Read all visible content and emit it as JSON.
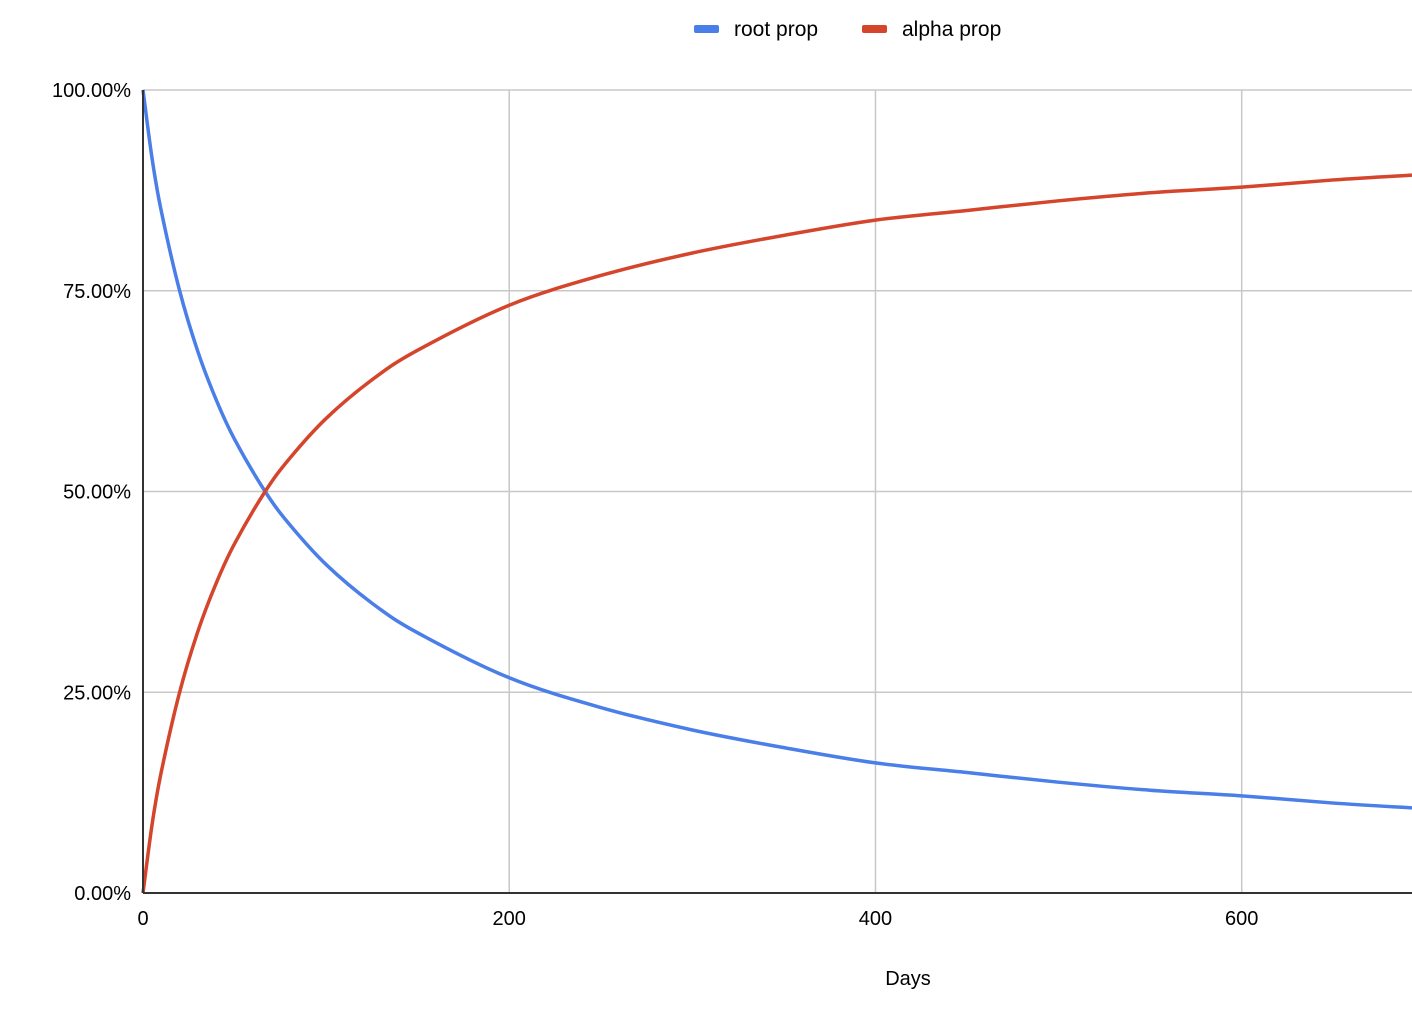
{
  "chart_data": {
    "type": "line",
    "title": "",
    "xlabel": "Days",
    "ylabel": "",
    "xlim": [
      0,
      693
    ],
    "ylim": [
      0,
      1
    ],
    "x_ticks": [
      0,
      200,
      400,
      600
    ],
    "x_tick_labels": [
      "0",
      "200",
      "400",
      "600"
    ],
    "y_ticks": [
      0,
      0.25,
      0.5,
      0.75,
      1
    ],
    "y_tick_labels": [
      "0.00%",
      "25.00%",
      "50.00%",
      "75.00%",
      "100.00%"
    ],
    "grid": true,
    "legend": "top",
    "x": [
      0,
      5,
      10,
      20,
      30,
      40,
      50,
      66.7,
      80,
      100,
      125,
      150,
      200,
      250,
      300,
      350,
      400,
      450,
      500,
      550,
      600,
      650,
      693
    ],
    "series": [
      {
        "name": "root prop",
        "color": "#4a7ee8",
        "values": [
          1.0,
          0.914,
          0.849,
          0.75,
          0.674,
          0.614,
          0.565,
          0.5,
          0.459,
          0.409,
          0.361,
          0.324,
          0.268,
          0.231,
          0.203,
          0.181,
          0.162,
          0.15,
          0.138,
          0.128,
          0.121,
          0.112,
          0.106
        ]
      },
      {
        "name": "alpha prop",
        "color": "#d4452c",
        "values": [
          0.0,
          0.086,
          0.151,
          0.25,
          0.326,
          0.386,
          0.435,
          0.5,
          0.541,
          0.591,
          0.639,
          0.676,
          0.732,
          0.769,
          0.797,
          0.819,
          0.838,
          0.85,
          0.862,
          0.872,
          0.879,
          0.888,
          0.894
        ]
      }
    ]
  }
}
